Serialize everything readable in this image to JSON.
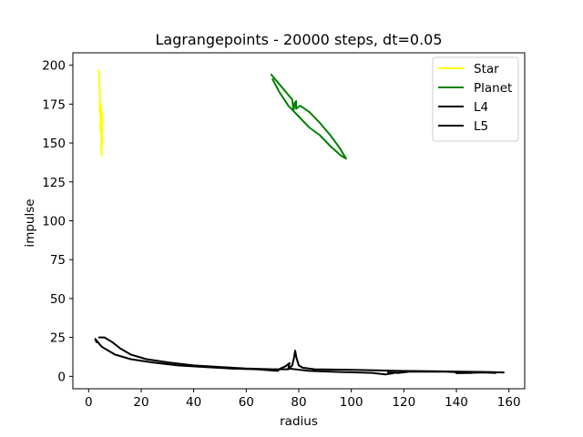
{
  "chart_data": {
    "type": "line",
    "title": "Lagrangepoints - 20000 steps, dt=0.05",
    "xlabel": "radius",
    "ylabel": "impulse",
    "xlim": [
      -6,
      166
    ],
    "ylim": [
      -8,
      208
    ],
    "xticks": [
      0,
      20,
      40,
      60,
      80,
      100,
      120,
      140,
      160
    ],
    "yticks": [
      0,
      25,
      50,
      75,
      100,
      125,
      150,
      175,
      200
    ],
    "grid": false,
    "legend_position": "top-right",
    "series": [
      {
        "name": "Star",
        "color": "#ffff00",
        "points": [
          [
            3.8,
            197
          ],
          [
            4.1,
            188
          ],
          [
            4.3,
            179
          ],
          [
            4.2,
            172
          ],
          [
            4.6,
            166
          ],
          [
            4.4,
            160
          ],
          [
            4.9,
            154
          ],
          [
            4.7,
            148
          ],
          [
            5.0,
            142
          ],
          [
            4.9,
            146
          ],
          [
            5.2,
            152
          ],
          [
            5.1,
            159
          ],
          [
            5.3,
            165
          ],
          [
            5.0,
            170
          ],
          [
            4.7,
            174
          ],
          [
            4.4,
            176
          ]
        ]
      },
      {
        "name": "Planet",
        "color": "#008000",
        "points": [
          [
            69.5,
            194
          ],
          [
            72.5,
            188
          ],
          [
            75.5,
            182
          ],
          [
            77.5,
            178
          ],
          [
            78.0,
            171
          ],
          [
            78.5,
            176
          ],
          [
            79.0,
            177
          ],
          [
            79.0,
            172
          ],
          [
            80.5,
            174
          ],
          [
            84.0,
            170
          ],
          [
            88.0,
            163
          ],
          [
            92.0,
            155
          ],
          [
            95.5,
            147
          ],
          [
            98.0,
            140
          ],
          [
            96.0,
            142
          ],
          [
            92.0,
            148
          ],
          [
            88.0,
            155
          ],
          [
            84.0,
            160
          ],
          [
            80.0,
            167
          ],
          [
            76.0,
            174
          ],
          [
            72.5,
            183
          ],
          [
            70.0,
            191
          ]
        ]
      },
      {
        "name": "L4",
        "color": "#000000",
        "points": [
          [
            4.0,
            25
          ],
          [
            6.0,
            25
          ],
          [
            9.0,
            22
          ],
          [
            12.0,
            18
          ],
          [
            16.0,
            14
          ],
          [
            22.0,
            11
          ],
          [
            30.0,
            9
          ],
          [
            40.0,
            7
          ],
          [
            50.0,
            6
          ],
          [
            60.0,
            5
          ],
          [
            70.0,
            4.5
          ],
          [
            76.0,
            4.5
          ],
          [
            77.5,
            7
          ],
          [
            78.2,
            12
          ],
          [
            78.6,
            16.5
          ],
          [
            79.1,
            12
          ],
          [
            80.0,
            7
          ],
          [
            81.5,
            5.5
          ],
          [
            86.0,
            4.5
          ],
          [
            95.0,
            4.3
          ],
          [
            105.0,
            4
          ],
          [
            118.0,
            3.5
          ],
          [
            130.0,
            3.3
          ],
          [
            142.0,
            3
          ],
          [
            152.0,
            2.8
          ],
          [
            158.0,
            2.5
          ]
        ]
      },
      {
        "name": "L5",
        "color": "#000000",
        "points": [
          [
            3.0,
            22
          ],
          [
            2.5,
            24
          ],
          [
            5.0,
            19
          ],
          [
            10.0,
            14
          ],
          [
            16.0,
            11
          ],
          [
            24.0,
            9
          ],
          [
            34.0,
            7
          ],
          [
            44.0,
            6
          ],
          [
            54.0,
            5
          ],
          [
            64.0,
            4.5
          ],
          [
            72.0,
            3.5
          ],
          [
            73.0,
            5
          ],
          [
            75.0,
            6.5
          ],
          [
            76.5,
            8.5
          ],
          [
            76.0,
            5
          ],
          [
            84.0,
            3.5
          ],
          [
            96.0,
            2.8
          ],
          [
            108.0,
            2.2
          ],
          [
            113.0,
            1.2
          ],
          [
            116.0,
            2
          ],
          [
            114.0,
            2.5
          ],
          [
            118.0,
            2.2
          ],
          [
            122.0,
            3
          ],
          [
            136.0,
            3
          ],
          [
            146.0,
            2.2
          ],
          [
            140.0,
            2
          ],
          [
            150.0,
            2.5
          ],
          [
            155.0,
            2.2
          ]
        ]
      }
    ]
  }
}
